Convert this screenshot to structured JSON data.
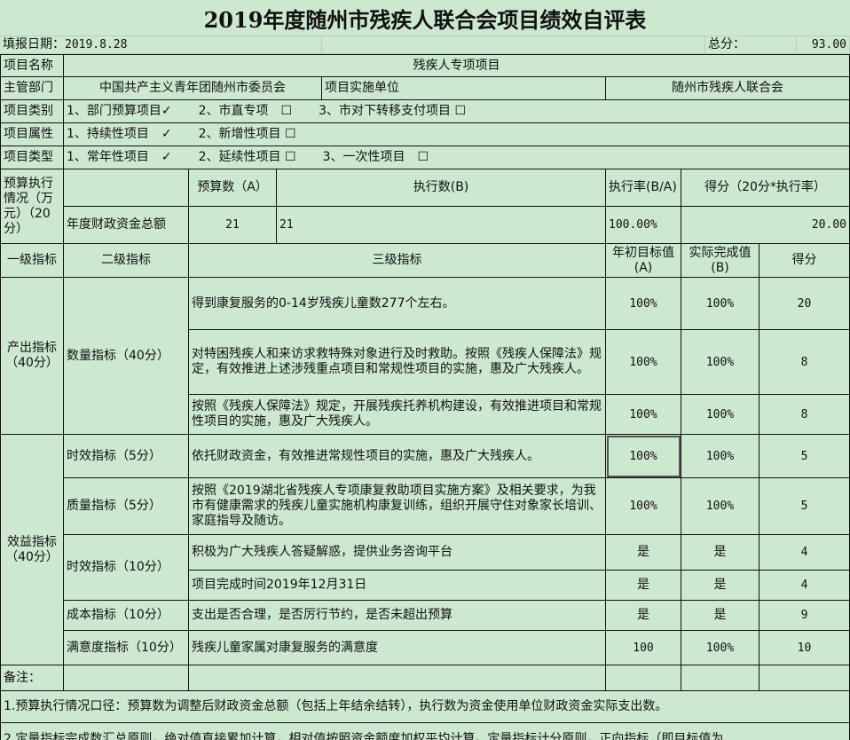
{
  "title": "2019年度随州市残疾人联合会项目绩效自评表",
  "fill_date_label": "填报日期：",
  "fill_date": "2019.8.28",
  "total_label": "总分：",
  "total_score": "93.00",
  "project_name_label": "项目名称",
  "project_name": "残疾人专项项目",
  "dept_label": "主管部门",
  "dept": "中国共产主义青年团随州市委员会",
  "impl_label": "项目实施单位",
  "impl_unit": "随州市残疾人联合会",
  "category": {
    "label": "项目类别",
    "options": [
      "1、部门预算项目✓",
      "2、市直专项　☐",
      "3、市对下转移支付项目 ☐"
    ]
  },
  "attribute": {
    "label": "项目属性",
    "options": [
      "1、持续性项目　✓",
      "2、新增性项目 ☐"
    ]
  },
  "type": {
    "label": "项目类型",
    "options": [
      "1、常年性项目　✓",
      "2、延续性项目 ☐",
      "3、一次性项目　☐"
    ]
  },
  "budget": {
    "label": "预算执行情况（万元）（20分）",
    "h_budget": "预算数（A）",
    "h_exec": "执行数(B)",
    "h_rate": "执行率(B/A)",
    "h_score": "得分（20分*执行率）",
    "row_label": "年度财政资金总额",
    "budget": "21",
    "exec": "21",
    "rate": "100.00%",
    "score": "20.00"
  },
  "indicators_header": {
    "l1": "一级指标",
    "l2": "二级指标",
    "l3": "三级指标",
    "target": "年初目标值(A)",
    "actual": "实际完成值(B)",
    "score": "得分"
  },
  "output": {
    "l1": "产出指标（40分）",
    "l2": "数量指标（40分）",
    "rows": [
      {
        "l3": "得到康复服务的0-14岁残疾儿童数277个左右。",
        "target": "100%",
        "actual": "100%",
        "score": "20"
      },
      {
        "l3": "对特困残疾人和来访求救特殊对象进行及时救助。按照《残疾人保障法》规定，有效推进上述涉残重点项目和常规性项目的实施，惠及广大残疾人。",
        "target": "100%",
        "actual": "100%",
        "score": "8"
      },
      {
        "l3": "按照《残疾人保障法》规定，开展残疾托养机构建设，有效推进项目和常规性项目的实施，惠及广大残疾人。",
        "target": "100%",
        "actual": "100%",
        "score": "8"
      }
    ]
  },
  "benefit": {
    "l1": "效益指标（40分）",
    "timely5": "时效指标（5分）",
    "quality": "质量指标（5分）",
    "timely10": "时效指标（10分）",
    "cost": "成本指标（10分）",
    "satisfaction": "满意度指标（10分）",
    "rows": [
      {
        "l3": "依托财政资金，有效推进常规性项目的实施，惠及广大残疾人。",
        "target": "100%",
        "actual": "100%",
        "score": "5"
      },
      {
        "l3": "按照《2019湖北省残疾人专项康复救助项目实施方案》及相关要求，为我市有健康需求的残疾儿童实施机构康复训练，组织开展守住对象家长培训、家庭指导及随访。",
        "target": "100%",
        "actual": "100%",
        "score": "5"
      },
      {
        "l3": "积极为广大残疾人答疑解惑，提供业务咨询平台",
        "target": "是",
        "actual": "是",
        "score": "4"
      },
      {
        "l3": "项目完成时间2019年12月31日",
        "target": "是",
        "actual": "是",
        "score": "4"
      },
      {
        "l3": "支出是否合理，是否厉行节约，是否未超出预算",
        "target": "是",
        "actual": "是",
        "score": "9"
      },
      {
        "l3": "残疾儿童家属对康复服务的满意度",
        "target": "100",
        "actual": "100%",
        "score": "10"
      }
    ]
  },
  "remark_label": "备注：",
  "notes": [
    "1.预算执行情况口径：预算数为调整后财政资金总额（包括上年结余结转），执行数为资金使用单位财政资金实际支出数。",
    "2.定量指标完成数汇总原则，绝对值直接累加计算，相对值按照资金额度加权平均计算。定量指标计分原则，正向指标（即目标值为"
  ]
}
